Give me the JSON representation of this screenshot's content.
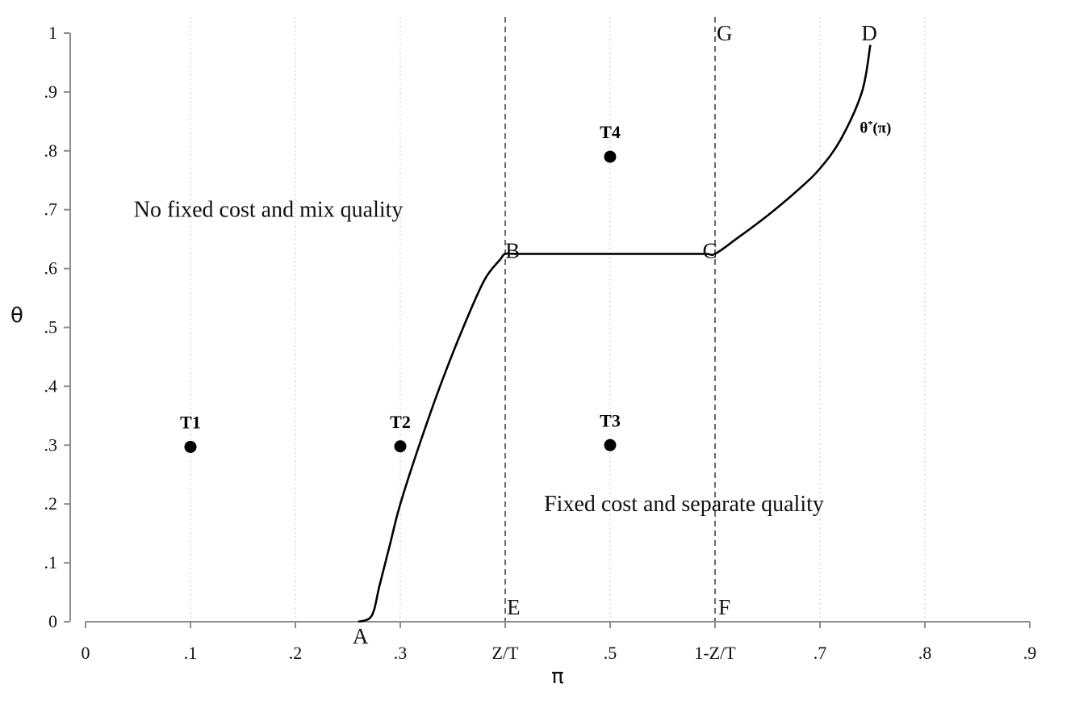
{
  "chart_data": {
    "type": "line",
    "title": "",
    "xlabel": "π",
    "ylabel": "θ",
    "xlim": [
      0,
      0.9
    ],
    "ylim": [
      0,
      1
    ],
    "grid": "vertical dotted",
    "x_ticks": [
      {
        "value": 0,
        "label": "0"
      },
      {
        "value": 0.1,
        "label": ".1"
      },
      {
        "value": 0.2,
        "label": ".2"
      },
      {
        "value": 0.3,
        "label": ".3"
      },
      {
        "value": 0.4,
        "label": "Z/T"
      },
      {
        "value": 0.5,
        "label": ".5"
      },
      {
        "value": 0.6,
        "label": "1-Z/T"
      },
      {
        "value": 0.7,
        "label": ".7"
      },
      {
        "value": 0.8,
        "label": ".8"
      },
      {
        "value": 0.9,
        "label": ".9"
      }
    ],
    "y_ticks": [
      {
        "value": 0,
        "label": "0"
      },
      {
        "value": 0.1,
        "label": ".1"
      },
      {
        "value": 0.2,
        "label": ".2"
      },
      {
        "value": 0.3,
        "label": ".3"
      },
      {
        "value": 0.4,
        "label": ".4"
      },
      {
        "value": 0.5,
        "label": ".5"
      },
      {
        "value": 0.6,
        "label": ".6"
      },
      {
        "value": 0.7,
        "label": ".7"
      },
      {
        "value": 0.8,
        "label": ".8"
      },
      {
        "value": 0.9,
        "label": ".9"
      },
      {
        "value": 1,
        "label": "1"
      }
    ],
    "vertical_lines": [
      0.4,
      0.6
    ],
    "series": [
      {
        "name": "θ*(π)",
        "x": [
          0.26,
          0.27,
          0.275,
          0.28,
          0.29,
          0.3,
          0.32,
          0.34,
          0.36,
          0.38,
          0.395,
          0.4,
          0.41,
          0.45,
          0.5,
          0.55,
          0.59,
          0.6,
          0.62,
          0.65,
          0.68,
          0.7,
          0.72,
          0.74,
          0.748
        ],
        "y": [
          0,
          0.005,
          0.02,
          0.06,
          0.13,
          0.2,
          0.31,
          0.41,
          0.5,
          0.58,
          0.615,
          0.625,
          0.625,
          0.625,
          0.625,
          0.625,
          0.625,
          0.625,
          0.65,
          0.69,
          0.735,
          0.77,
          0.82,
          0.9,
          0.98
        ]
      }
    ],
    "points": [
      {
        "label": "T1",
        "x": 0.1,
        "y": 0.297
      },
      {
        "label": "T2",
        "x": 0.3,
        "y": 0.298
      },
      {
        "label": "T3",
        "x": 0.5,
        "y": 0.3
      },
      {
        "label": "T4",
        "x": 0.5,
        "y": 0.79
      }
    ],
    "letter_annotations": [
      {
        "text": "A",
        "x": 0.262,
        "y": -0.025
      },
      {
        "text": "B",
        "x": 0.407,
        "y": 0.63
      },
      {
        "text": "C",
        "x": 0.595,
        "y": 0.63
      },
      {
        "text": "D",
        "x": 0.747,
        "y": 1.0
      },
      {
        "text": "E",
        "x": 0.408,
        "y": 0.025
      },
      {
        "text": "F",
        "x": 0.609,
        "y": 0.025
      },
      {
        "text": "G",
        "x": 0.609,
        "y": 1.0
      }
    ],
    "annotations": [
      {
        "text": "No fixed cost and mix quality",
        "x": 0.046,
        "y": 0.7
      },
      {
        "text": "Fixed cost and separate quality",
        "x": 0.437,
        "y": 0.2
      },
      {
        "text": "θ*(π)",
        "x": 0.738,
        "y": 0.84
      }
    ]
  }
}
